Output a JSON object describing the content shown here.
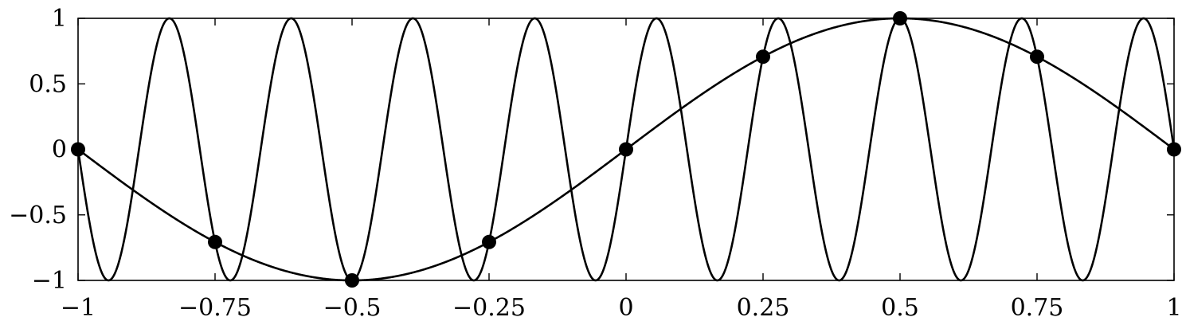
{
  "chart_data": {
    "type": "line",
    "title": "",
    "xlabel": "",
    "ylabel": "",
    "xlim": [
      -1,
      1
    ],
    "ylim": [
      -1,
      1
    ],
    "grid": false,
    "legend": "none",
    "x_ticks": [
      -1,
      -0.75,
      -0.5,
      -0.25,
      0,
      0.25,
      0.5,
      0.75,
      1
    ],
    "x_tick_labels": [
      "−1",
      "−0.75",
      "−0.5",
      "−0.25",
      "0",
      "0.25",
      "0.5",
      "0.75",
      "1"
    ],
    "y_ticks": [
      -1,
      -0.5,
      0,
      0.5,
      1
    ],
    "y_tick_labels": [
      "−1",
      "−0.5",
      "0",
      "0.5",
      "1"
    ],
    "series": [
      {
        "function": "sin(pi*x)",
        "frequency": 1,
        "color": "#000000",
        "x": [
          -1,
          -0.875,
          -0.75,
          -0.625,
          -0.5,
          -0.375,
          -0.25,
          -0.125,
          0,
          0.125,
          0.25,
          0.375,
          0.5,
          0.625,
          0.75,
          0.875,
          1
        ],
        "y": [
          0,
          -0.383,
          -0.707,
          -0.924,
          -1,
          -0.924,
          -0.707,
          -0.383,
          0,
          0.383,
          0.707,
          0.924,
          1,
          0.924,
          0.707,
          0.383,
          0
        ]
      },
      {
        "function": "sin(9*pi*x)",
        "frequency": 9,
        "color": "#000000",
        "x": [
          -1,
          -0.944,
          -0.889,
          -0.833,
          -0.778,
          -0.722,
          -0.667,
          -0.611,
          -0.556,
          -0.5,
          -0.444,
          -0.389,
          -0.333,
          -0.278,
          -0.222,
          -0.167,
          -0.111,
          -0.056,
          0,
          0.056,
          0.111,
          0.167,
          0.222,
          0.278,
          0.333,
          0.389,
          0.444,
          0.5,
          0.556,
          0.611,
          0.667,
          0.722,
          0.778,
          0.833,
          0.889,
          0.944,
          1
        ],
        "y": [
          0,
          -1,
          0,
          1,
          0,
          -1,
          0,
          1,
          0,
          -1,
          0,
          1,
          0,
          -1,
          0,
          1,
          0,
          -1,
          0,
          1,
          0,
          -1,
          0,
          1,
          0,
          -1,
          0,
          1,
          0,
          -1,
          0,
          1,
          0,
          -1,
          0,
          1,
          0
        ]
      }
    ],
    "markers": {
      "color": "#000000",
      "x": [
        -1,
        -0.75,
        -0.5,
        -0.25,
        0,
        0.25,
        0.5,
        0.75,
        1
      ],
      "y": [
        0,
        -0.707,
        -1,
        -0.707,
        0,
        0.707,
        1,
        0.707,
        0
      ]
    }
  }
}
